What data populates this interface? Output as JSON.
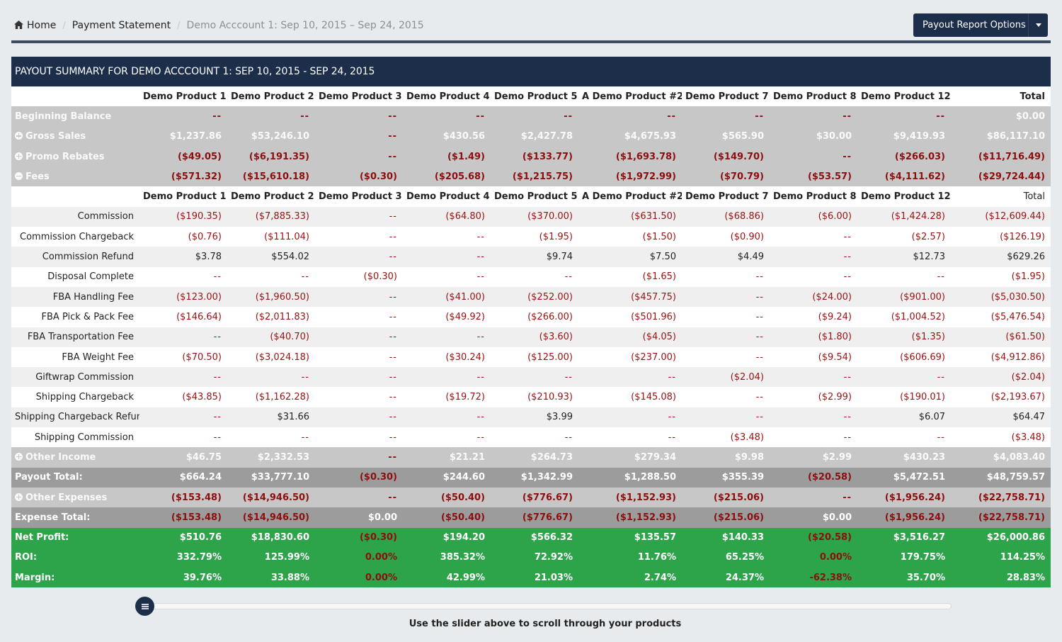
{
  "breadcrumb": {
    "home": "Home",
    "statement": "Payment Statement",
    "current": "Demo Acccount 1: Sep 10, 2015 – Sep 24, 2015"
  },
  "options_button": "Payout Report Options",
  "panel_title": "PAYOUT SUMMARY FOR DEMO ACCCOUNT 1: SEP 10, 2015 - SEP 24, 2015",
  "columns": [
    "Demo Product 1",
    "Demo Product 2",
    "Demo Product 3",
    "Demo Product 4",
    "Demo Product 5",
    "A Demo Product #2",
    "Demo Product 7",
    "Demo Product 8",
    "Demo Product 12"
  ],
  "total_label": "Total",
  "summary_rows": [
    {
      "label": "Beginning Balance",
      "icon": "none",
      "values": [
        "--",
        "--",
        "--",
        "--",
        "--",
        "--",
        "--",
        "--",
        "--",
        "$0.00"
      ]
    },
    {
      "label": "Gross Sales",
      "icon": "plus",
      "values": [
        "$1,237.86",
        "$53,246.10",
        "--",
        "$430.56",
        "$2,427.78",
        "$4,675.93",
        "$565.90",
        "$30.00",
        "$9,419.93",
        "$86,117.10"
      ]
    },
    {
      "label": "Promo Rebates",
      "icon": "plus",
      "values": [
        "($49.05)",
        "($6,191.35)",
        "--",
        "($1.49)",
        "($133.77)",
        "($1,693.78)",
        "($149.70)",
        "--",
        "($266.03)",
        "($11,716.49)"
      ]
    },
    {
      "label": "Fees",
      "icon": "minus",
      "values": [
        "($571.32)",
        "($15,610.18)",
        "($0.30)",
        "($205.68)",
        "($1,215.75)",
        "($1,972.99)",
        "($70.79)",
        "($53.57)",
        "($4,111.62)",
        "($29,724.44)"
      ]
    }
  ],
  "fee_rows": [
    {
      "label": "Commission",
      "values": [
        "($190.35)",
        "($7,885.33)",
        "--",
        "($64.80)",
        "($370.00)",
        "($631.50)",
        "($68.86)",
        "($6.00)",
        "($1,424.28)",
        "($12,609.44)"
      ]
    },
    {
      "label": "Commission Chargeback",
      "values": [
        "($0.76)",
        "($111.04)",
        "--",
        "--",
        "($1.95)",
        "($1.50)",
        "($0.90)",
        "--",
        "($2.57)",
        "($126.19)"
      ]
    },
    {
      "label": "Commission Refund",
      "values": [
        "$3.78",
        "$554.02",
        "--",
        "--",
        "$9.74",
        "$7.50",
        "$4.49",
        "--",
        "$12.73",
        "$629.26"
      ]
    },
    {
      "label": "Disposal Complete",
      "values": [
        "--",
        "--",
        "($0.30)",
        "--",
        "--",
        "($1.65)",
        "--",
        "--",
        "--",
        "($1.95)"
      ]
    },
    {
      "label": "FBA Handling Fee",
      "values": [
        "($123.00)",
        "($1,960.50)",
        "--",
        "($41.00)",
        "($252.00)",
        "($457.75)",
        "--",
        "($24.00)",
        "($901.00)",
        "($5,030.50)"
      ]
    },
    {
      "label": "FBA Pick & Pack Fee",
      "values": [
        "($146.64)",
        "($2,011.83)",
        "--",
        "($49.92)",
        "($266.00)",
        "($501.96)",
        "--",
        "($9.24)",
        "($1,004.52)",
        "($5,476.54)"
      ]
    },
    {
      "label": "FBA Transportation Fee",
      "values": [
        "--",
        "($40.70)",
        "--",
        "--",
        "($3.60)",
        "($4.05)",
        "--",
        "($1.80)",
        "($1.35)",
        "($61.50)"
      ]
    },
    {
      "label": "FBA Weight Fee",
      "values": [
        "($70.50)",
        "($3,024.18)",
        "--",
        "($30.24)",
        "($125.00)",
        "($237.00)",
        "--",
        "($9.54)",
        "($606.69)",
        "($4,912.86)"
      ]
    },
    {
      "label": "Giftwrap Commission",
      "values": [
        "--",
        "--",
        "--",
        "--",
        "--",
        "--",
        "($2.04)",
        "--",
        "--",
        "($2.04)"
      ]
    },
    {
      "label": "Shipping Chargeback",
      "values": [
        "($43.85)",
        "($1,162.28)",
        "--",
        "($19.72)",
        "($210.93)",
        "($145.08)",
        "--",
        "($2.99)",
        "($190.01)",
        "($2,193.67)"
      ]
    },
    {
      "label": "Shipping Chargeback Refunds",
      "values": [
        "--",
        "$31.66",
        "--",
        "--",
        "$3.99",
        "--",
        "--",
        "--",
        "$6.07",
        "$64.47"
      ]
    },
    {
      "label": "Shipping Commission",
      "values": [
        "--",
        "--",
        "--",
        "--",
        "--",
        "--",
        "($3.48)",
        "--",
        "--",
        "($3.48)"
      ]
    }
  ],
  "bottom_rows": [
    {
      "label": "Other Income",
      "style": "sum",
      "icon": "plus",
      "values": [
        "$46.75",
        "$2,332.53",
        "--",
        "$21.21",
        "$264.73",
        "$279.34",
        "$9.98",
        "$2.99",
        "$430.23",
        "$4,083.40"
      ]
    },
    {
      "label": "Payout Total:",
      "style": "tot",
      "icon": "none",
      "values": [
        "$664.24",
        "$33,777.10",
        "($0.30)",
        "$244.60",
        "$1,342.99",
        "$1,288.50",
        "$355.39",
        "($20.58)",
        "$5,472.51",
        "$48,759.57"
      ]
    },
    {
      "label": "Other Expenses",
      "style": "sum",
      "icon": "plus",
      "values": [
        "($153.48)",
        "($14,946.50)",
        "--",
        "($50.40)",
        "($776.67)",
        "($1,152.93)",
        "($215.06)",
        "--",
        "($1,956.24)",
        "($22,758.71)"
      ]
    },
    {
      "label": "Expense Total:",
      "style": "tot",
      "icon": "none",
      "values": [
        "($153.48)",
        "($14,946.50)",
        "$0.00",
        "($50.40)",
        "($776.67)",
        "($1,152.93)",
        "($215.06)",
        "$0.00",
        "($1,956.24)",
        "($22,758.71)"
      ]
    },
    {
      "label": "Net Profit:",
      "style": "grn",
      "icon": "none",
      "values": [
        "$510.76",
        "$18,830.60",
        "($0.30)",
        "$194.20",
        "$566.32",
        "$135.57",
        "$140.33",
        "($20.58)",
        "$3,516.27",
        "$26,000.86"
      ]
    },
    {
      "label": "ROI:",
      "style": "grn",
      "icon": "none",
      "values": [
        "332.79%",
        "125.99%",
        "0.00%",
        "385.32%",
        "72.92%",
        "11.76%",
        "65.25%",
        "0.00%",
        "179.75%",
        "114.25%"
      ]
    },
    {
      "label": "Margin:",
      "style": "grn",
      "icon": "none",
      "values": [
        "39.76%",
        "33.88%",
        "0.00%",
        "42.99%",
        "21.03%",
        "2.74%",
        "24.37%",
        "-62.38%",
        "35.70%",
        "28.83%"
      ]
    }
  ],
  "red_cells": {
    "Payout Total:": [
      2,
      7
    ],
    "Expense Total:": [
      0,
      1,
      3,
      4,
      5,
      6,
      8,
      9
    ],
    "Net Profit:": [
      2,
      7
    ],
    "ROI:": [
      2,
      7
    ],
    "Margin:": [
      2,
      7
    ]
  },
  "slider_caption": "Use the slider above to scroll through your products"
}
